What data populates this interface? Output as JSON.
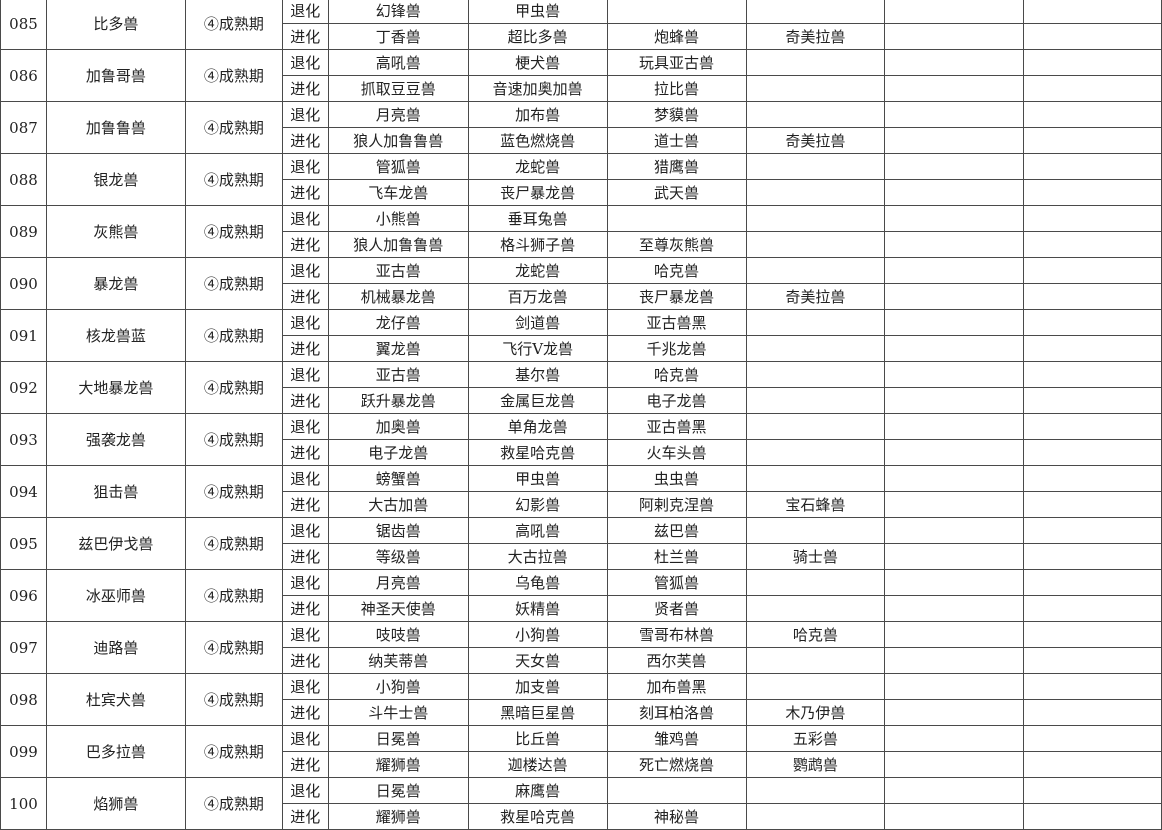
{
  "labels": {
    "devolve": "退化",
    "evolve": "进化"
  },
  "rows": [
    {
      "id": "085",
      "name": "比多兽",
      "stage": "④成熟期",
      "devolve": [
        "幻锋兽",
        "甲虫兽",
        "",
        ""
      ],
      "evolve": [
        "丁香兽",
        "超比多兽",
        "炮蜂兽",
        "奇美拉兽"
      ]
    },
    {
      "id": "086",
      "name": "加鲁哥兽",
      "stage": "④成熟期",
      "devolve": [
        "高吼兽",
        "梗犬兽",
        "玩具亚古兽",
        ""
      ],
      "evolve": [
        "抓取豆豆兽",
        "音速加奥加兽",
        "拉比兽",
        ""
      ]
    },
    {
      "id": "087",
      "name": "加鲁鲁兽",
      "stage": "④成熟期",
      "devolve": [
        "月亮兽",
        "加布兽",
        "梦貘兽",
        ""
      ],
      "evolve": [
        "狼人加鲁鲁兽",
        "蓝色燃烧兽",
        "道士兽",
        "奇美拉兽"
      ]
    },
    {
      "id": "088",
      "name": "银龙兽",
      "stage": "④成熟期",
      "devolve": [
        "管狐兽",
        "龙蛇兽",
        "猎鹰兽",
        ""
      ],
      "evolve": [
        "飞车龙兽",
        "丧尸暴龙兽",
        "武天兽",
        ""
      ]
    },
    {
      "id": "089",
      "name": "灰熊兽",
      "stage": "④成熟期",
      "devolve": [
        "小熊兽",
        "垂耳兔兽",
        "",
        ""
      ],
      "evolve": [
        "狼人加鲁鲁兽",
        "格斗狮子兽",
        "至尊灰熊兽",
        ""
      ]
    },
    {
      "id": "090",
      "name": "暴龙兽",
      "stage": "④成熟期",
      "devolve": [
        "亚古兽",
        "龙蛇兽",
        "哈克兽",
        ""
      ],
      "evolve": [
        "机械暴龙兽",
        "百万龙兽",
        "丧尸暴龙兽",
        "奇美拉兽"
      ]
    },
    {
      "id": "091",
      "name": "核龙兽蓝",
      "stage": "④成熟期",
      "devolve": [
        "龙仔兽",
        "剑道兽",
        "亚古兽黑",
        ""
      ],
      "evolve": [
        "翼龙兽",
        "飞行V龙兽",
        "千兆龙兽",
        ""
      ]
    },
    {
      "id": "092",
      "name": "大地暴龙兽",
      "stage": "④成熟期",
      "devolve": [
        "亚古兽",
        "基尔兽",
        "哈克兽",
        ""
      ],
      "evolve": [
        "跃升暴龙兽",
        "金属巨龙兽",
        "电子龙兽",
        ""
      ]
    },
    {
      "id": "093",
      "name": "强袭龙兽",
      "stage": "④成熟期",
      "devolve": [
        "加奥兽",
        "单角龙兽",
        "亚古兽黑",
        ""
      ],
      "evolve": [
        "电子龙兽",
        "救星哈克兽",
        "火车头兽",
        ""
      ]
    },
    {
      "id": "094",
      "name": "狙击兽",
      "stage": "④成熟期",
      "devolve": [
        "螃蟹兽",
        "甲虫兽",
        "虫虫兽",
        ""
      ],
      "evolve": [
        "大古加兽",
        "幻影兽",
        "阿剌克涅兽",
        "宝石蜂兽"
      ]
    },
    {
      "id": "095",
      "name": "兹巴伊戈兽",
      "stage": "④成熟期",
      "devolve": [
        "锯齿兽",
        "高吼兽",
        "兹巴兽",
        ""
      ],
      "evolve": [
        "等级兽",
        "大古拉兽",
        "杜兰兽",
        "骑士兽"
      ]
    },
    {
      "id": "096",
      "name": "冰巫师兽",
      "stage": "④成熟期",
      "devolve": [
        "月亮兽",
        "乌龟兽",
        "管狐兽",
        ""
      ],
      "evolve": [
        "神圣天使兽",
        "妖精兽",
        "贤者兽",
        ""
      ]
    },
    {
      "id": "097",
      "name": "迪路兽",
      "stage": "④成熟期",
      "devolve": [
        "吱吱兽",
        "小狗兽",
        "雪哥布林兽",
        "哈克兽"
      ],
      "evolve": [
        "纳芙蒂兽",
        "天女兽",
        "西尔芙兽",
        ""
      ]
    },
    {
      "id": "098",
      "name": "杜宾犬兽",
      "stage": "④成熟期",
      "devolve": [
        "小狗兽",
        "加支兽",
        "加布兽黑",
        ""
      ],
      "evolve": [
        "斗牛士兽",
        "黑暗巨星兽",
        "刻耳柏洛兽",
        "木乃伊兽"
      ]
    },
    {
      "id": "099",
      "name": "巴多拉兽",
      "stage": "④成熟期",
      "devolve": [
        "日冕兽",
        "比丘兽",
        "雏鸡兽",
        "五彩兽"
      ],
      "evolve": [
        "耀狮兽",
        "迦楼达兽",
        "死亡燃烧兽",
        "鹦鹉兽"
      ]
    },
    {
      "id": "100",
      "name": "焰狮兽",
      "stage": "④成熟期",
      "devolve": [
        "日冕兽",
        "麻鹰兽",
        "",
        ""
      ],
      "evolve": [
        "耀狮兽",
        "救星哈克兽",
        "神秘兽",
        ""
      ]
    }
  ]
}
